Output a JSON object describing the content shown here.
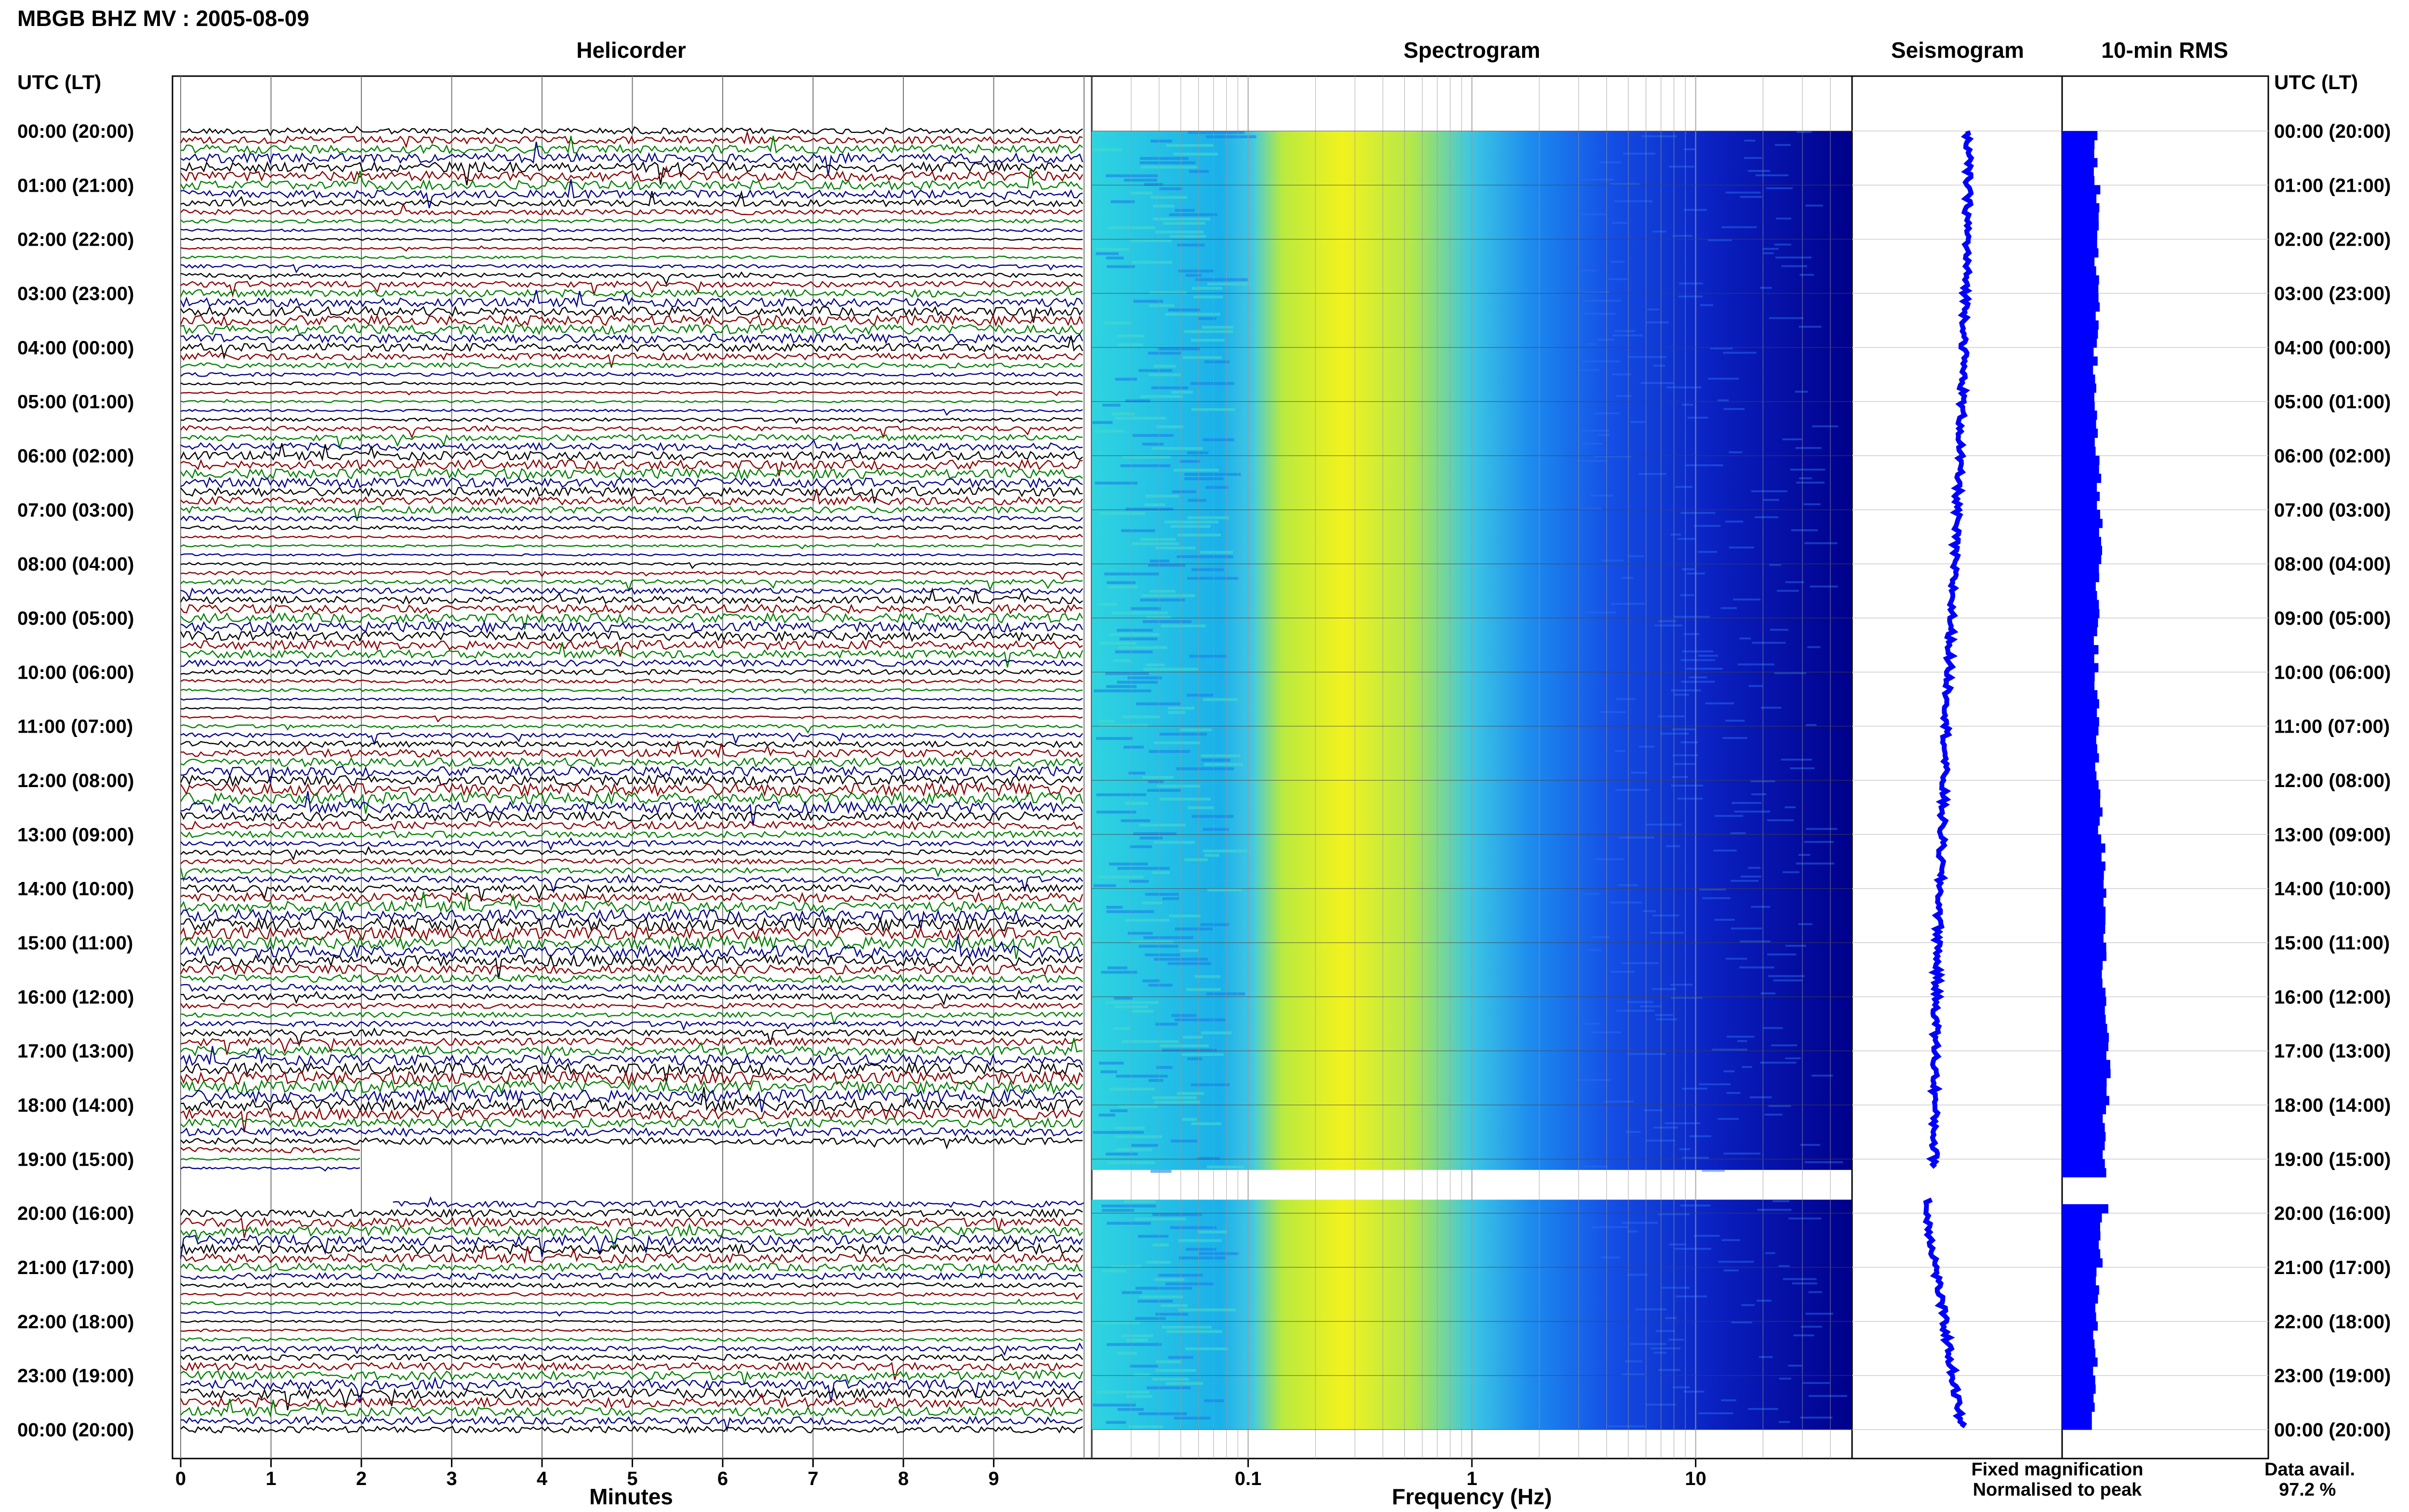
{
  "header": {
    "title": "MBGB BHZ MV : 2005-08-09"
  },
  "panels": {
    "helicorder": "Helicorder",
    "spectrogram": "Spectrogram",
    "seismogram": "Seismogram",
    "rms": "10-min RMS"
  },
  "axis": {
    "utc_label": "UTC (LT)",
    "minutes_label": "Minutes",
    "frequency_label": "Frequency (Hz)"
  },
  "legend": {
    "fixed": "Fixed magnification",
    "fixed_color": "#0000ff",
    "normalised": "Normalised to peak",
    "normalised_color": "#ff0000"
  },
  "data_avail": {
    "label": "Data avail.",
    "value": "97.2 %"
  },
  "colors": {
    "trace_cycle": [
      "#000000",
      "#8b0000",
      "#008000",
      "#00008b"
    ],
    "seismogram": "#0000ff",
    "rms": "#0000ff",
    "spectrogram_low": "#00008b",
    "spectrogram_high": "#ffff00"
  },
  "chart_data": [
    {
      "type": "line",
      "name": "helicorder",
      "title": "Helicorder",
      "xlabel": "Minutes",
      "ylabel": "UTC (LT)",
      "x_ticks": [
        0,
        1,
        2,
        3,
        4,
        5,
        6,
        7,
        8,
        9
      ],
      "xlim": [
        0,
        10
      ],
      "time_labels": [
        "00:00 (20:00)",
        "01:00 (21:00)",
        "02:00 (22:00)",
        "03:00 (23:00)",
        "04:00 (00:00)",
        "05:00 (01:00)",
        "06:00 (02:00)",
        "07:00 (03:00)",
        "08:00 (04:00)",
        "09:00 (05:00)",
        "10:00 (06:00)",
        "11:00 (07:00)",
        "12:00 (08:00)",
        "13:00 (09:00)",
        "14:00 (10:00)",
        "15:00 (11:00)",
        "16:00 (12:00)",
        "17:00 (13:00)",
        "18:00 (14:00)",
        "19:00 (15:00)",
        "20:00 (16:00)",
        "21:00 (17:00)",
        "22:00 (18:00)",
        "23:00 (19:00)",
        "00:00 (20:00)"
      ],
      "traces_per_hour": 6,
      "gap_hours": [
        19.2,
        19.75
      ]
    },
    {
      "type": "heatmap",
      "name": "spectrogram",
      "title": "Spectrogram",
      "xlabel": "Frequency (Hz)",
      "x_scale": "log",
      "x_ticks": [
        0.1,
        1,
        10
      ],
      "xlim": [
        0.02,
        50
      ]
    },
    {
      "type": "line",
      "name": "seismogram",
      "title": "Seismogram"
    },
    {
      "type": "bar",
      "name": "rms",
      "title": "10-min RMS",
      "ylabel": "UTC (LT)",
      "time_labels": [
        "00:00 (20:00)",
        "01:00 (21:00)",
        "02:00 (22:00)",
        "03:00 (23:00)",
        "04:00 (00:00)",
        "05:00 (01:00)",
        "06:00 (02:00)",
        "07:00 (03:00)",
        "08:00 (04:00)",
        "09:00 (05:00)",
        "10:00 (06:00)",
        "11:00 (07:00)",
        "12:00 (08:00)",
        "13:00 (09:00)",
        "14:00 (10:00)",
        "15:00 (11:00)",
        "16:00 (12:00)",
        "17:00 (13:00)",
        "18:00 (14:00)",
        "19:00 (15:00)",
        "20:00 (16:00)",
        "21:00 (17:00)",
        "22:00 (18:00)",
        "23:00 (19:00)",
        "00:00 (20:00)"
      ],
      "hourly_level": [
        0.55,
        0.58,
        0.56,
        0.58,
        0.54,
        0.56,
        0.6,
        0.63,
        0.58,
        0.55,
        0.56,
        0.57,
        0.62,
        0.66,
        0.7,
        0.68,
        0.72,
        0.75,
        0.68,
        0.72,
        0.62,
        0.56,
        0.54,
        0.52,
        0.5
      ]
    }
  ]
}
